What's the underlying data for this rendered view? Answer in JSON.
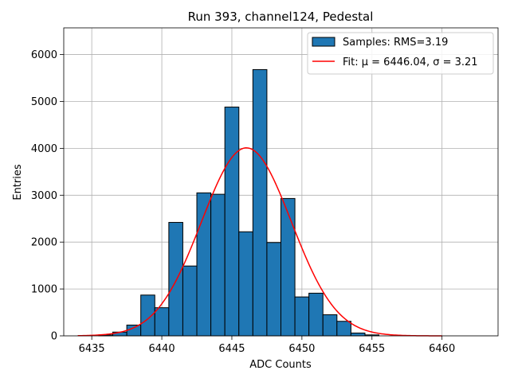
{
  "chart_data": {
    "type": "bar",
    "title": "Run 393, channel124, Pedestal",
    "xlabel": "ADC Counts",
    "ylabel": "Entries",
    "xlim": [
      6433,
      6464
    ],
    "ylim": [
      0,
      6570
    ],
    "grid": true,
    "legend_placement": "top-right",
    "xticks": [
      6435,
      6440,
      6445,
      6450,
      6455,
      6460
    ],
    "yticks": [
      0,
      1000,
      2000,
      3000,
      4000,
      5000,
      6000
    ],
    "bin_width": 1,
    "bins": [
      {
        "x": 6436,
        "value": 20
      },
      {
        "x": 6437,
        "value": 80
      },
      {
        "x": 6438,
        "value": 230
      },
      {
        "x": 6439,
        "value": 870
      },
      {
        "x": 6440,
        "value": 600
      },
      {
        "x": 6441,
        "value": 2420
      },
      {
        "x": 6442,
        "value": 1490
      },
      {
        "x": 6443,
        "value": 3050
      },
      {
        "x": 6444,
        "value": 3020
      },
      {
        "x": 6445,
        "value": 4880
      },
      {
        "x": 6446,
        "value": 2220
      },
      {
        "x": 6447,
        "value": 5680
      },
      {
        "x": 6448,
        "value": 1990
      },
      {
        "x": 6449,
        "value": 2930
      },
      {
        "x": 6450,
        "value": 830
      },
      {
        "x": 6451,
        "value": 910
      },
      {
        "x": 6452,
        "value": 450
      },
      {
        "x": 6453,
        "value": 310
      },
      {
        "x": 6454,
        "value": 60
      },
      {
        "x": 6455,
        "value": 20
      }
    ],
    "series": [
      {
        "name": "Samples: RMS=3.19",
        "kind": "histogram",
        "color": "#1f77b4",
        "edge_color": "#000000"
      },
      {
        "name": "Fit: μ = 6446.04, σ = 3.21",
        "kind": "gaussian",
        "color": "#ff0000",
        "mu": 6446.04,
        "sigma": 3.21,
        "amplitude": 4010,
        "x_range": [
          6434,
          6460
        ]
      }
    ]
  }
}
